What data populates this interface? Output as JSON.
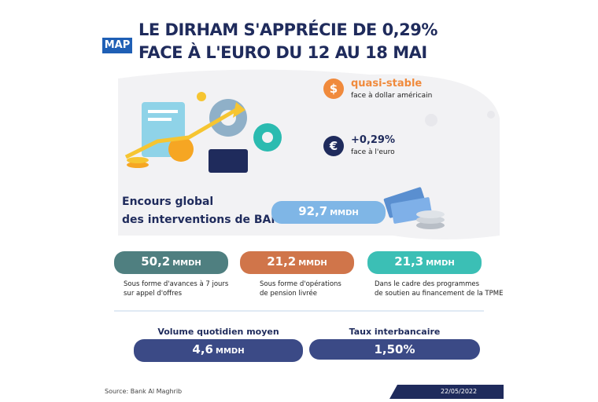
{
  "header": {
    "logo": "MAP",
    "title_lines": [
      "LE DIRHAM S'APPRÉCIE DE 0,29%",
      "FACE À L'EURO DU 12 AU 18 MAI"
    ]
  },
  "highlights": [
    {
      "icon": "$",
      "value": "quasi-stable",
      "label": "face à dollar américain"
    },
    {
      "icon": "€",
      "value": "+0,29%",
      "label": "face à l'euro"
    }
  ],
  "encours": {
    "label_lines": [
      "Encours global",
      "des interventions de BAM"
    ],
    "amount": "92,7",
    "unit": "MMDH"
  },
  "breakdown": [
    {
      "amount": "50,2",
      "unit": "MMDH",
      "caption_lines": [
        "Sous forme d'avances à 7 jours",
        "sur appel d'offres"
      ]
    },
    {
      "amount": "21,2",
      "unit": "MMDH",
      "caption_lines": [
        "Sous forme d'opérations",
        "de pension livrée"
      ]
    },
    {
      "amount": "21,3",
      "unit": "MMDH",
      "caption_lines": [
        "Dans le cadre des programmes",
        "de soutien au financement de la TPME"
      ]
    }
  ],
  "indicators": [
    {
      "label": "Volume quotidien moyen",
      "amount": "4,6",
      "unit": "MMDH"
    },
    {
      "label": "Taux interbancaire",
      "amount": "1,50%"
    }
  ],
  "footer": {
    "source": "Source: Bank Al Maghrib",
    "date": "22/05/2022"
  }
}
